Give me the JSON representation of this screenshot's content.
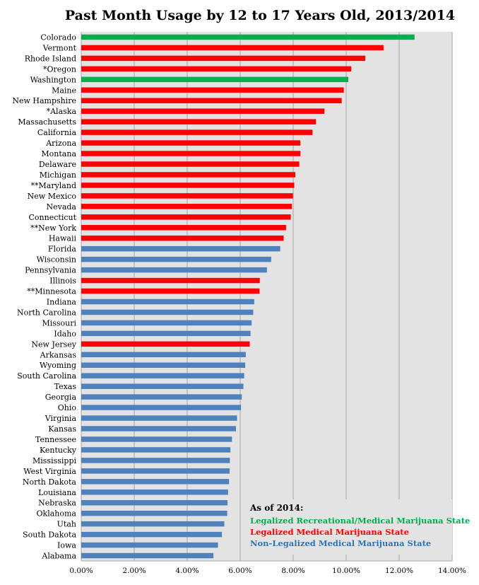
{
  "chart_data": {
    "type": "bar",
    "orientation": "horizontal",
    "title": "Past Month Usage by 12 to 17 Years Old, 2013/2014",
    "xlabel": "",
    "ylabel": "",
    "xlim": [
      0,
      0.14
    ],
    "x_ticks": [
      0,
      0.02,
      0.04,
      0.06,
      0.08,
      0.1,
      0.12,
      0.14
    ],
    "x_tick_labels": [
      "0.00%",
      "2.00%",
      "4.00%",
      "6.00%",
      "8.00%",
      "10.00%",
      "12.00%",
      "14.00%"
    ],
    "grid": "vertical",
    "legend_position": "bottom-right",
    "legend_title": "As of 2014:",
    "groups": [
      {
        "key": "rec",
        "label": "Legalized Recreational/Medical Marijuana State",
        "color": "#00B050"
      },
      {
        "key": "med",
        "label": "Legalized Medical Marijuana State",
        "color": "#FF0000"
      },
      {
        "key": "non",
        "label": "Non-Legalized Medical Marijuana State",
        "color": "#4F81BD"
      }
    ],
    "legend_text_colors": {
      "rec": "#00B050",
      "med": "#FF0000",
      "non": "#2E75B6"
    },
    "bars": [
      {
        "label": "Colorado",
        "value": 0.1258,
        "group": "rec"
      },
      {
        "label": "Vermont",
        "value": 0.1141,
        "group": "med"
      },
      {
        "label": "Rhode Island",
        "value": 0.1072,
        "group": "med"
      },
      {
        "label": "*Oregon",
        "value": 0.1019,
        "group": "med"
      },
      {
        "label": "Washington",
        "value": 0.1008,
        "group": "rec"
      },
      {
        "label": "Maine",
        "value": 0.0991,
        "group": "med"
      },
      {
        "label": "New Hampshire",
        "value": 0.0983,
        "group": "med"
      },
      {
        "label": "*Alaska",
        "value": 0.0918,
        "group": "med"
      },
      {
        "label": "Massachusetts",
        "value": 0.0886,
        "group": "med"
      },
      {
        "label": "California",
        "value": 0.0873,
        "group": "med"
      },
      {
        "label": "Arizona",
        "value": 0.0827,
        "group": "med"
      },
      {
        "label": "Montana",
        "value": 0.0827,
        "group": "med"
      },
      {
        "label": "Delaware",
        "value": 0.0823,
        "group": "med"
      },
      {
        "label": "Michigan",
        "value": 0.0808,
        "group": "med"
      },
      {
        "label": "**Maryland",
        "value": 0.0804,
        "group": "med"
      },
      {
        "label": "New Mexico",
        "value": 0.0799,
        "group": "med"
      },
      {
        "label": "Nevada",
        "value": 0.0795,
        "group": "med"
      },
      {
        "label": "Connecticut",
        "value": 0.0791,
        "group": "med"
      },
      {
        "label": "**New York",
        "value": 0.0773,
        "group": "med"
      },
      {
        "label": "Hawaii",
        "value": 0.0764,
        "group": "med"
      },
      {
        "label": "Florida",
        "value": 0.0751,
        "group": "non"
      },
      {
        "label": "Wisconsin",
        "value": 0.0717,
        "group": "non"
      },
      {
        "label": "Pennsylvania",
        "value": 0.0701,
        "group": "non"
      },
      {
        "label": "Illinois",
        "value": 0.0674,
        "group": "med"
      },
      {
        "label": "**Minnesota",
        "value": 0.0673,
        "group": "med"
      },
      {
        "label": "Indiana",
        "value": 0.0653,
        "group": "non"
      },
      {
        "label": "North Carolina",
        "value": 0.0649,
        "group": "non"
      },
      {
        "label": "Missouri",
        "value": 0.0643,
        "group": "non"
      },
      {
        "label": "Idaho",
        "value": 0.0639,
        "group": "non"
      },
      {
        "label": "New Jersey",
        "value": 0.0636,
        "group": "med"
      },
      {
        "label": "Arkansas",
        "value": 0.0621,
        "group": "non"
      },
      {
        "label": "Wyoming",
        "value": 0.0619,
        "group": "non"
      },
      {
        "label": "South Carolina",
        "value": 0.0615,
        "group": "non"
      },
      {
        "label": "Texas",
        "value": 0.0612,
        "group": "non"
      },
      {
        "label": "Georgia",
        "value": 0.0606,
        "group": "non"
      },
      {
        "label": "Ohio",
        "value": 0.0603,
        "group": "non"
      },
      {
        "label": "Virginia",
        "value": 0.0588,
        "group": "non"
      },
      {
        "label": "Kansas",
        "value": 0.0584,
        "group": "non"
      },
      {
        "label": "Tennessee",
        "value": 0.0569,
        "group": "non"
      },
      {
        "label": "Kentucky",
        "value": 0.0563,
        "group": "non"
      },
      {
        "label": "Mississippi",
        "value": 0.0561,
        "group": "non"
      },
      {
        "label": "West Virginia",
        "value": 0.056,
        "group": "non"
      },
      {
        "label": "North Dakota",
        "value": 0.0558,
        "group": "non"
      },
      {
        "label": "Louisiana",
        "value": 0.0554,
        "group": "non"
      },
      {
        "label": "Nebraska",
        "value": 0.0552,
        "group": "non"
      },
      {
        "label": "Oklahoma",
        "value": 0.0551,
        "group": "non"
      },
      {
        "label": "Utah",
        "value": 0.054,
        "group": "non"
      },
      {
        "label": "South Dakota",
        "value": 0.0531,
        "group": "non"
      },
      {
        "label": "Iowa",
        "value": 0.0516,
        "group": "non"
      },
      {
        "label": "Alabama",
        "value": 0.0499,
        "group": "non"
      }
    ]
  }
}
